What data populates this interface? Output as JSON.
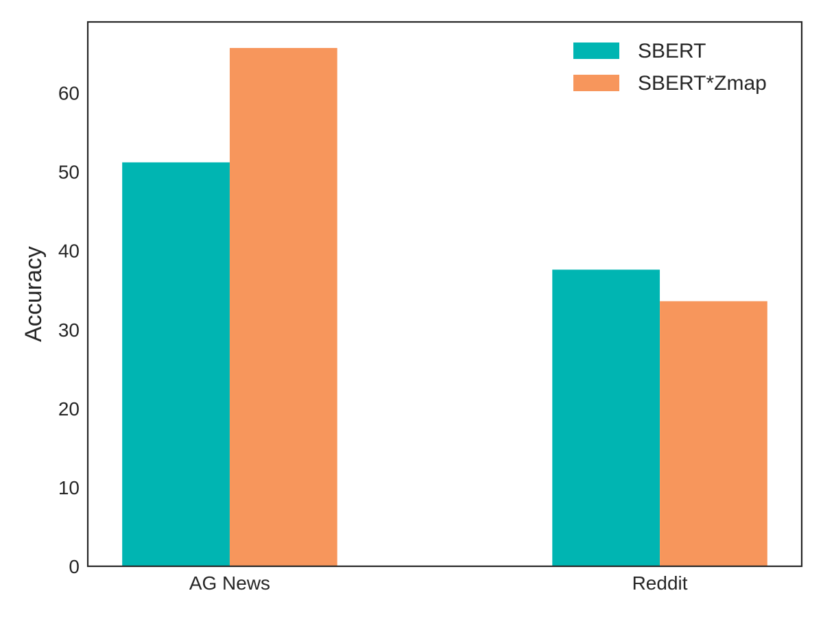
{
  "chart_data": {
    "type": "bar",
    "title": "",
    "xlabel": "",
    "ylabel": "Accuracy",
    "categories": [
      "AG News",
      "Reddit"
    ],
    "series": [
      {
        "name": "SBERT",
        "color": "#00b5b2",
        "values": [
          51.2,
          37.6
        ]
      },
      {
        "name": "SBERT*Zmap",
        "color": "#f7965c",
        "values": [
          65.7,
          33.6
        ]
      }
    ],
    "ylim": [
      0,
      69
    ],
    "yticks": [
      "0",
      "10",
      "20",
      "30",
      "40",
      "50",
      "60"
    ],
    "grid": false,
    "legend_position": "top-right"
  }
}
